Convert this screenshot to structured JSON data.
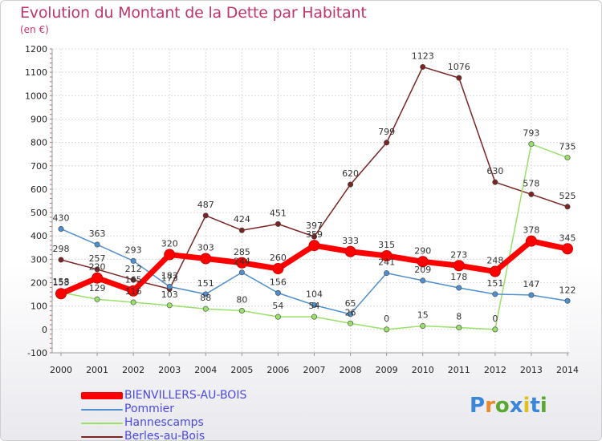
{
  "chart_data": {
    "type": "line",
    "title": "Evolution du Montant de la Dette par Habitant",
    "subtitle": "(en €)",
    "x": [
      "2000",
      "2001",
      "2002",
      "2003",
      "2004",
      "2005",
      "2006",
      "2007",
      "2008",
      "2009",
      "2010",
      "2011",
      "2012",
      "2013",
      "2014"
    ],
    "yticks": [
      "-100",
      "0",
      "100",
      "200",
      "300",
      "400",
      "500",
      "600",
      "700",
      "800",
      "900",
      "1000",
      "1100",
      "1200"
    ],
    "ylim": [
      -100,
      1200
    ],
    "grid": true,
    "legend_position": "bottom-left",
    "series": [
      {
        "name": "BIENVILLERS-AU-BOIS",
        "color": "#ff0000",
        "values": [
          153,
          220,
          165,
          320,
          303,
          285,
          260,
          359,
          333,
          315,
          290,
          273,
          248,
          378,
          345
        ],
        "labels": [
          "153",
          "220",
          "165",
          "320",
          "303",
          "285",
          "260",
          "359",
          "333",
          "315",
          "290",
          "273",
          "248",
          "378",
          "345"
        ]
      },
      {
        "name": "Pommier",
        "color": "#4f8fcf",
        "values": [
          430,
          363,
          293,
          183,
          151,
          244,
          156,
          104,
          65,
          241,
          209,
          178,
          151,
          147,
          122
        ],
        "labels": [
          "430",
          "363",
          "293",
          "183",
          "151",
          "244",
          "156",
          "104",
          "65",
          "241",
          "209",
          "178",
          "151",
          "147",
          "122"
        ]
      },
      {
        "name": "Hannescamps",
        "color": "#99e06a",
        "values": [
          158,
          129,
          116,
          103,
          88,
          80,
          54,
          54,
          26,
          0,
          15,
          8,
          0,
          793,
          735
        ],
        "labels": [
          "158",
          "129",
          "116",
          "103",
          "88",
          "80",
          "54",
          "54",
          "26",
          "0",
          "15",
          "8",
          "0",
          "793",
          "735"
        ]
      },
      {
        "name": "Berles-au-Bois",
        "color": "#7a2424",
        "values": [
          298,
          257,
          212,
          173,
          487,
          424,
          451,
          397,
          620,
          799,
          1123,
          1076,
          630,
          578,
          525
        ],
        "labels": [
          "298",
          "257",
          "212",
          "173",
          "487",
          "424",
          "451",
          "397",
          "620",
          "799",
          "1123",
          "1076",
          "630",
          "578",
          "525"
        ]
      }
    ]
  },
  "logo": {
    "text": "Proxiti",
    "letters": [
      "P",
      "r",
      "o",
      "x",
      "i",
      "t",
      "i"
    ],
    "colors": [
      "#3a86d9",
      "#e8892a",
      "#5aa832",
      "#3a86d9",
      "#e0c020",
      "#3a86d9",
      "#5aa832"
    ]
  }
}
